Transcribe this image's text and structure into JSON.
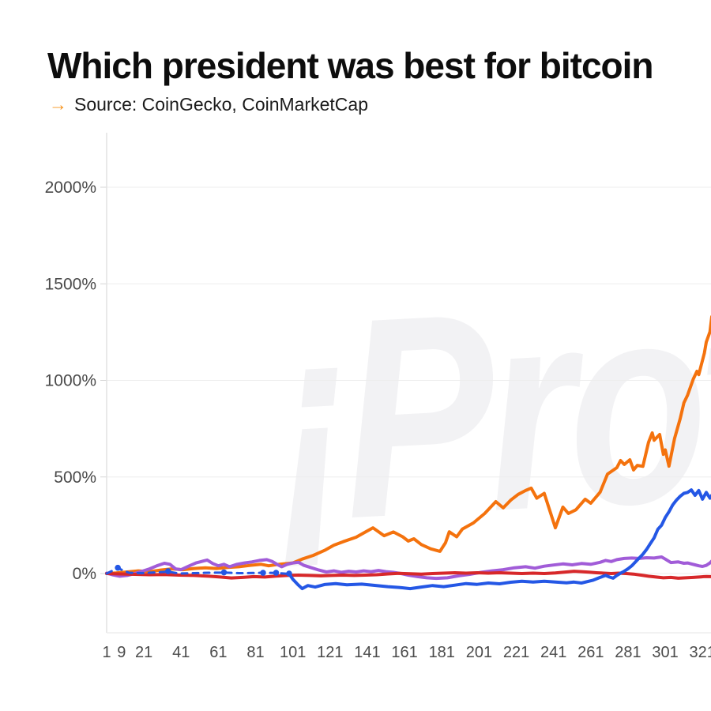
{
  "header": {
    "title": "Which president was best for bitcoin",
    "source_arrow": "→",
    "source_text": "Source: CoinGecko, CoinMarketCap"
  },
  "watermark_text": "¡Protos",
  "colors": {
    "orange": "#F4720D",
    "blue": "#2457E5",
    "purple": "#A15CD8",
    "red": "#D7282A",
    "grid": "#ededed",
    "axis": "#e2e2e2",
    "tick": "#d6d6d6",
    "label": "#4a4a4a",
    "accent_arrow": "#f7941d",
    "watermark": "#f2f2f4"
  },
  "chart_data": {
    "type": "line",
    "title": "Which president was best for bitcoin",
    "xlabel": "",
    "ylabel": "",
    "grid": "horizontal",
    "legend": "none",
    "x_ticks": [
      1,
      9,
      21,
      41,
      61,
      81,
      101,
      121,
      141,
      161,
      181,
      201,
      221,
      241,
      261,
      281,
      301,
      321
    ],
    "y_ticks": [
      0,
      500,
      1000,
      1500,
      2000
    ],
    "y_tick_suffix": "%",
    "x_range": [
      1,
      326
    ],
    "y_range_pct": [
      -305,
      2280
    ],
    "series": [
      {
        "id": "orange-series",
        "color": "#F4720D",
        "width": 4,
        "dash": null,
        "points": [
          [
            1,
            0
          ],
          [
            6,
            3
          ],
          [
            12,
            8
          ],
          [
            18,
            14
          ],
          [
            24,
            10
          ],
          [
            30,
            18
          ],
          [
            36,
            24
          ],
          [
            42,
            20
          ],
          [
            48,
            26
          ],
          [
            54,
            30
          ],
          [
            60,
            26
          ],
          [
            66,
            32
          ],
          [
            72,
            35
          ],
          [
            78,
            42
          ],
          [
            84,
            48
          ],
          [
            88,
            40
          ],
          [
            92,
            46
          ],
          [
            96,
            50
          ],
          [
            101,
            55
          ],
          [
            106,
            75
          ],
          [
            112,
            94
          ],
          [
            118,
            120
          ],
          [
            123,
            147
          ],
          [
            128,
            165
          ],
          [
            135,
            188
          ],
          [
            140,
            215
          ],
          [
            144,
            237
          ],
          [
            150,
            196
          ],
          [
            155,
            215
          ],
          [
            160,
            190
          ],
          [
            163,
            168
          ],
          [
            166,
            180
          ],
          [
            170,
            150
          ],
          [
            175,
            128
          ],
          [
            180,
            115
          ],
          [
            183,
            160
          ],
          [
            185,
            216
          ],
          [
            189,
            190
          ],
          [
            192,
            230
          ],
          [
            198,
            262
          ],
          [
            204,
            311
          ],
          [
            210,
            372
          ],
          [
            214,
            340
          ],
          [
            218,
            380
          ],
          [
            222,
            410
          ],
          [
            226,
            430
          ],
          [
            229,
            442
          ],
          [
            232,
            390
          ],
          [
            236,
            415
          ],
          [
            242,
            237
          ],
          [
            246,
            344
          ],
          [
            249,
            311
          ],
          [
            253,
            330
          ],
          [
            258,
            385
          ],
          [
            261,
            364
          ],
          [
            266,
            421
          ],
          [
            270,
            515
          ],
          [
            275,
            548
          ],
          [
            277,
            585
          ],
          [
            279,
            565
          ],
          [
            282,
            589
          ],
          [
            284,
            536
          ],
          [
            286,
            560
          ],
          [
            289,
            555
          ],
          [
            292,
            679
          ],
          [
            294,
            728
          ],
          [
            295,
            690
          ],
          [
            298,
            720
          ],
          [
            300,
            617
          ],
          [
            301,
            640
          ],
          [
            303,
            556
          ],
          [
            306,
            700
          ],
          [
            309,
            802
          ],
          [
            311,
            884
          ],
          [
            313,
            924
          ],
          [
            316,
            1006
          ],
          [
            318,
            1047
          ],
          [
            319,
            1030
          ],
          [
            322,
            1141
          ],
          [
            323,
            1198
          ],
          [
            325,
            1252
          ],
          [
            326,
            1330
          ]
        ]
      },
      {
        "id": "purple-series",
        "color": "#A15CD8",
        "width": 4,
        "dash": null,
        "points": [
          [
            1,
            2
          ],
          [
            4,
            -6
          ],
          [
            8,
            -14
          ],
          [
            12,
            -10
          ],
          [
            16,
            0
          ],
          [
            20,
            12
          ],
          [
            24,
            24
          ],
          [
            28,
            40
          ],
          [
            32,
            53
          ],
          [
            35,
            48
          ],
          [
            38,
            24
          ],
          [
            41,
            20
          ],
          [
            45,
            38
          ],
          [
            49,
            55
          ],
          [
            53,
            65
          ],
          [
            55,
            70
          ],
          [
            58,
            52
          ],
          [
            61,
            40
          ],
          [
            64,
            48
          ],
          [
            67,
            35
          ],
          [
            71,
            48
          ],
          [
            75,
            55
          ],
          [
            79,
            60
          ],
          [
            83,
            68
          ],
          [
            87,
            72
          ],
          [
            90,
            62
          ],
          [
            93,
            45
          ],
          [
            95,
            35
          ],
          [
            98,
            48
          ],
          [
            101,
            55
          ],
          [
            104,
            58
          ],
          [
            107,
            42
          ],
          [
            111,
            30
          ],
          [
            115,
            18
          ],
          [
            119,
            8
          ],
          [
            123,
            14
          ],
          [
            127,
            6
          ],
          [
            131,
            12
          ],
          [
            135,
            8
          ],
          [
            139,
            14
          ],
          [
            143,
            10
          ],
          [
            147,
            16
          ],
          [
            151,
            10
          ],
          [
            155,
            6
          ],
          [
            159,
            0
          ],
          [
            163,
            -8
          ],
          [
            168,
            -16
          ],
          [
            173,
            -22
          ],
          [
            178,
            -25
          ],
          [
            184,
            -22
          ],
          [
            190,
            -12
          ],
          [
            196,
            -4
          ],
          [
            202,
            6
          ],
          [
            208,
            14
          ],
          [
            214,
            20
          ],
          [
            220,
            30
          ],
          [
            226,
            35
          ],
          [
            231,
            28
          ],
          [
            236,
            38
          ],
          [
            241,
            44
          ],
          [
            246,
            50
          ],
          [
            251,
            45
          ],
          [
            256,
            52
          ],
          [
            261,
            48
          ],
          [
            266,
            58
          ],
          [
            269,
            68
          ],
          [
            272,
            62
          ],
          [
            275,
            72
          ],
          [
            279,
            78
          ],
          [
            283,
            80
          ],
          [
            287,
            78
          ],
          [
            291,
            82
          ],
          [
            295,
            80
          ],
          [
            299,
            86
          ],
          [
            301,
            75
          ],
          [
            304,
            57
          ],
          [
            308,
            60
          ],
          [
            311,
            53
          ],
          [
            313,
            55
          ],
          [
            315,
            50
          ],
          [
            317,
            45
          ],
          [
            319,
            40
          ],
          [
            321,
            37
          ],
          [
            323,
            42
          ],
          [
            325,
            55
          ],
          [
            326,
            65
          ]
        ]
      },
      {
        "id": "red-series",
        "color": "#D7282A",
        "width": 4,
        "dash": null,
        "points": [
          [
            1,
            0
          ],
          [
            8,
            -2
          ],
          [
            16,
            -4
          ],
          [
            24,
            -6
          ],
          [
            32,
            -5
          ],
          [
            40,
            -8
          ],
          [
            48,
            -10
          ],
          [
            56,
            -14
          ],
          [
            62,
            -18
          ],
          [
            68,
            -23
          ],
          [
            74,
            -20
          ],
          [
            80,
            -16
          ],
          [
            86,
            -18
          ],
          [
            92,
            -13
          ],
          [
            98,
            -10
          ],
          [
            104,
            -8
          ],
          [
            110,
            -10
          ],
          [
            116,
            -12
          ],
          [
            122,
            -10
          ],
          [
            128,
            -8
          ],
          [
            134,
            -10
          ],
          [
            140,
            -8
          ],
          [
            146,
            -6
          ],
          [
            152,
            -2
          ],
          [
            158,
            1
          ],
          [
            164,
            -1
          ],
          [
            170,
            -3
          ],
          [
            176,
            0
          ],
          [
            182,
            2
          ],
          [
            188,
            4
          ],
          [
            194,
            2
          ],
          [
            200,
            4
          ],
          [
            206,
            2
          ],
          [
            212,
            4
          ],
          [
            218,
            2
          ],
          [
            224,
            0
          ],
          [
            230,
            2
          ],
          [
            236,
            0
          ],
          [
            242,
            3
          ],
          [
            248,
            8
          ],
          [
            252,
            12
          ],
          [
            256,
            10
          ],
          [
            260,
            7
          ],
          [
            264,
            4
          ],
          [
            268,
            2
          ],
          [
            272,
            0
          ],
          [
            276,
            2
          ],
          [
            280,
            0
          ],
          [
            284,
            -3
          ],
          [
            288,
            -8
          ],
          [
            292,
            -14
          ],
          [
            296,
            -18
          ],
          [
            300,
            -22
          ],
          [
            304,
            -20
          ],
          [
            308,
            -24
          ],
          [
            312,
            -22
          ],
          [
            316,
            -20
          ],
          [
            320,
            -17
          ],
          [
            323,
            -15
          ],
          [
            326,
            -16
          ]
        ]
      },
      {
        "id": "blue-dashed-series",
        "color": "#2457E5",
        "width": 3,
        "dash": "7 7",
        "points": [
          [
            1,
            0
          ],
          [
            7,
            28
          ],
          [
            13,
            4
          ],
          [
            20,
            2
          ],
          [
            28,
            6
          ],
          [
            34,
            10
          ],
          [
            40,
            0
          ],
          [
            48,
            2
          ],
          [
            56,
            4
          ],
          [
            64,
            5
          ],
          [
            72,
            2
          ],
          [
            80,
            3
          ],
          [
            85,
            4
          ],
          [
            92,
            3
          ],
          [
            99,
            -2
          ]
        ]
      },
      {
        "id": "blue-series",
        "color": "#2457E5",
        "width": 4,
        "dash": null,
        "points": [
          [
            99,
            -2
          ],
          [
            101,
            -30
          ],
          [
            104,
            -60
          ],
          [
            106,
            -78
          ],
          [
            109,
            -62
          ],
          [
            113,
            -70
          ],
          [
            118,
            -57
          ],
          [
            124,
            -52
          ],
          [
            130,
            -58
          ],
          [
            138,
            -55
          ],
          [
            146,
            -62
          ],
          [
            152,
            -68
          ],
          [
            158,
            -72
          ],
          [
            164,
            -78
          ],
          [
            170,
            -70
          ],
          [
            176,
            -62
          ],
          [
            182,
            -68
          ],
          [
            188,
            -60
          ],
          [
            194,
            -52
          ],
          [
            200,
            -56
          ],
          [
            206,
            -49
          ],
          [
            212,
            -53
          ],
          [
            218,
            -45
          ],
          [
            224,
            -40
          ],
          [
            230,
            -44
          ],
          [
            236,
            -40
          ],
          [
            242,
            -44
          ],
          [
            248,
            -48
          ],
          [
            252,
            -44
          ],
          [
            256,
            -49
          ],
          [
            262,
            -35
          ],
          [
            266,
            -20
          ],
          [
            269,
            -10
          ],
          [
            271,
            -18
          ],
          [
            273,
            -24
          ],
          [
            275,
            -10
          ],
          [
            277,
            2
          ],
          [
            279,
            12
          ],
          [
            281,
            25
          ],
          [
            283,
            40
          ],
          [
            285,
            60
          ],
          [
            287,
            80
          ],
          [
            289,
            100
          ],
          [
            291,
            125
          ],
          [
            293,
            155
          ],
          [
            295,
            185
          ],
          [
            297,
            229
          ],
          [
            299,
            250
          ],
          [
            301,
            290
          ],
          [
            303,
            320
          ],
          [
            305,
            355
          ],
          [
            307,
            380
          ],
          [
            309,
            400
          ],
          [
            311,
            415
          ],
          [
            313,
            420
          ],
          [
            315,
            433
          ],
          [
            317,
            405
          ],
          [
            319,
            430
          ],
          [
            321,
            385
          ],
          [
            323,
            420
          ],
          [
            325,
            390
          ],
          [
            326,
            405
          ]
        ]
      }
    ],
    "dots": {
      "color": "#2457E5",
      "radius": 3.8,
      "points": [
        [
          7,
          30
        ],
        [
          34,
          12
        ],
        [
          64,
          6
        ],
        [
          85,
          4
        ],
        [
          92,
          4
        ],
        [
          99,
          0
        ]
      ]
    }
  }
}
